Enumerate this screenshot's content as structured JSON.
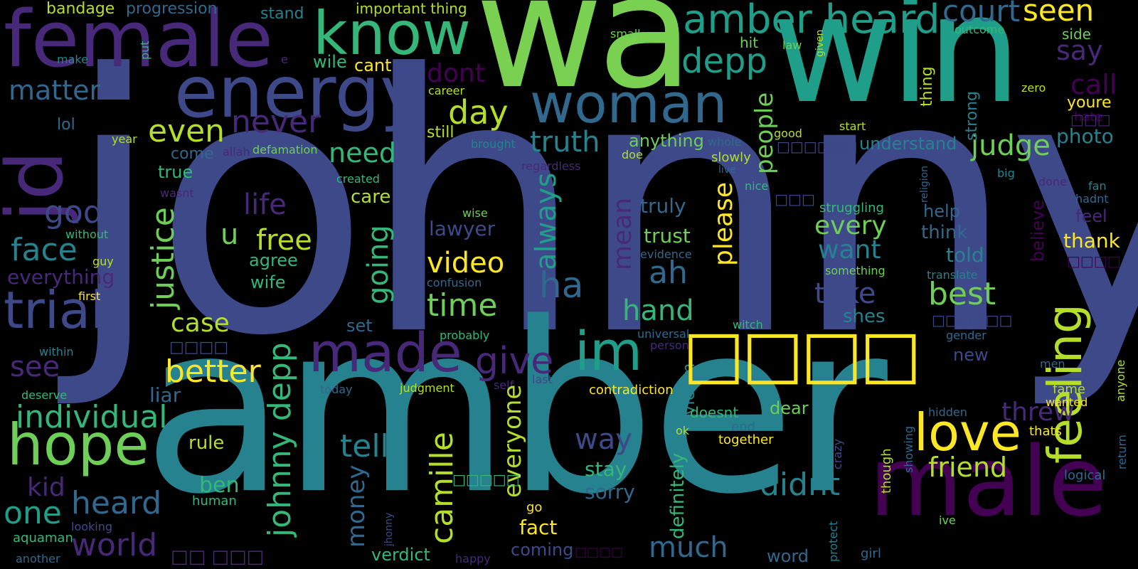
{
  "image_kind": "word cloud",
  "palette": {
    "background": "#000000",
    "deep_purple": "#440154",
    "purple": "#482878",
    "indigo": "#3e4989",
    "blue": "#31688e",
    "teal": "#26828e",
    "sea_green": "#1f9e89",
    "green": "#35b779",
    "lime": "#6ece58",
    "yellow_green": "#b5de2b",
    "yellow": "#fde725"
  },
  "words": [
    "johnny",
    "amber",
    "wa",
    "win",
    "female",
    "male",
    "jd",
    "energy",
    "woman",
    "know",
    "amber heard",
    "court",
    "seen",
    "depp",
    "made",
    "feeling",
    "love",
    "trial",
    "hope",
    "im",
    "even",
    "day",
    "never",
    "truth",
    "judge",
    "say",
    "side",
    "outcome",
    "matter",
    "dont",
    "bandage",
    "progression",
    "stand",
    "important thing",
    "make",
    "put",
    "e",
    "wile",
    "cant",
    "small",
    "hit",
    "law",
    "given",
    "call",
    "youre",
    "hate",
    "zero",
    "thing",
    "strong",
    "photo",
    "lol",
    "year",
    "come",
    "allah",
    "defamation",
    "brought",
    "good",
    "start",
    "understand",
    "career",
    "still",
    "anything",
    "whole",
    "slowly",
    "live",
    "doe",
    "regardless",
    "need",
    "people",
    "true",
    "wasnt",
    "created",
    "life",
    "justice",
    "free",
    "always",
    "mean",
    "trust",
    "truly",
    "please",
    "god",
    "without",
    "care",
    "nice",
    "struggling",
    "religion",
    "big",
    "done",
    "fan",
    "hadnt",
    "feel",
    "face",
    "u",
    "agree",
    "wife",
    "wise",
    "lawyer",
    "every",
    "help",
    "think",
    "believe",
    "thank",
    "guy",
    "everything",
    "first",
    "video",
    "evidence",
    "want",
    "told",
    "something",
    "translate",
    "going",
    "ah",
    "ha",
    "hand",
    "take",
    "best",
    "shes",
    "time",
    "confusion",
    "case",
    "set",
    "probably",
    "witch",
    "universal",
    "person",
    "gender",
    "within",
    "see",
    "better",
    "give",
    "threw",
    "new",
    "men",
    "fame",
    "wanted",
    "anyone",
    "deserve",
    "today",
    "judgment",
    "self",
    "last",
    "contradiction",
    "victim",
    "doesnt",
    "dear",
    "hidden",
    "individual",
    "liar",
    "rule",
    "johnny depp",
    "way",
    "tell",
    "camille",
    "everyone",
    "definitely",
    "ok",
    "end",
    "together",
    "didnt",
    "friend",
    "thats",
    "showing",
    "though",
    "return",
    "logical",
    "kid",
    "heard",
    "one",
    "ben",
    "human",
    "stay",
    "sorry",
    "crazy",
    "money",
    "go",
    "fact",
    "protect",
    "ive",
    "aquaman",
    "looking",
    "world",
    "jhonny",
    "verdict",
    "coming",
    "much",
    "word",
    "girl",
    "another",
    "happy",
    "□□□□",
    "□□□",
    "□□□□□□",
    "□□ □□□",
    "□□□□",
    "□□□□□□",
    "□□□□",
    "□□□□□",
    "□□□□",
    "□□ □□□"
  ]
}
